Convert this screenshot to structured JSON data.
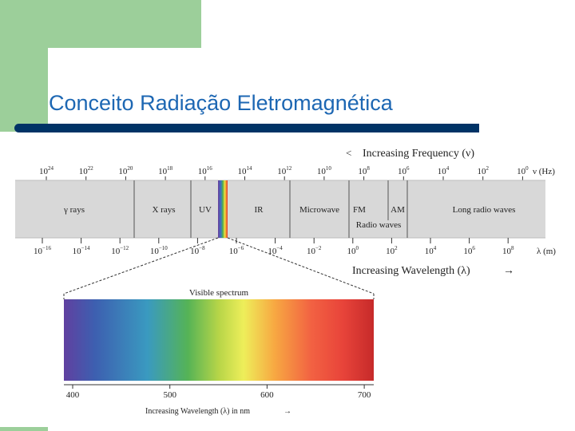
{
  "title": "Conceito Radiação Eletromagnética",
  "diagram": {
    "frequency_header": "Increasing Frequency (ν)",
    "frequency_unit": "ν (Hz)",
    "frequency_ticks": [
      {
        "base": "10",
        "exp": "24"
      },
      {
        "base": "10",
        "exp": "22"
      },
      {
        "base": "10",
        "exp": "20"
      },
      {
        "base": "10",
        "exp": "18"
      },
      {
        "base": "10",
        "exp": "16"
      },
      {
        "base": "10",
        "exp": "14"
      },
      {
        "base": "10",
        "exp": "12"
      },
      {
        "base": "10",
        "exp": "10"
      },
      {
        "base": "10",
        "exp": "8"
      },
      {
        "base": "10",
        "exp": "6"
      },
      {
        "base": "10",
        "exp": "4"
      },
      {
        "base": "10",
        "exp": "2"
      },
      {
        "base": "10",
        "exp": "0"
      }
    ],
    "bands": [
      "γ rays",
      "X rays",
      "UV",
      "IR",
      "Microwave",
      "FM",
      "AM",
      "Long radio waves"
    ],
    "radio_waves_label": "Radio waves",
    "wavelength_ticks": [
      {
        "base": "10",
        "exp": "−16"
      },
      {
        "base": "10",
        "exp": "−14"
      },
      {
        "base": "10",
        "exp": "−12"
      },
      {
        "base": "10",
        "exp": "−10"
      },
      {
        "base": "10",
        "exp": "−8"
      },
      {
        "base": "10",
        "exp": "−6"
      },
      {
        "base": "10",
        "exp": "−4"
      },
      {
        "base": "10",
        "exp": "−2"
      },
      {
        "base": "10",
        "exp": "0"
      },
      {
        "base": "10",
        "exp": "2"
      },
      {
        "base": "10",
        "exp": "4"
      },
      {
        "base": "10",
        "exp": "6"
      },
      {
        "base": "10",
        "exp": "8"
      }
    ],
    "wavelength_unit": "λ (m)",
    "wavelength_header": "Increasing Wavelength (λ)",
    "visible_label": "Visible spectrum",
    "visible_ticks": [
      "400",
      "500",
      "600",
      "700"
    ],
    "visible_axis_label": "Increasing Wavelength (λ) in nm"
  }
}
